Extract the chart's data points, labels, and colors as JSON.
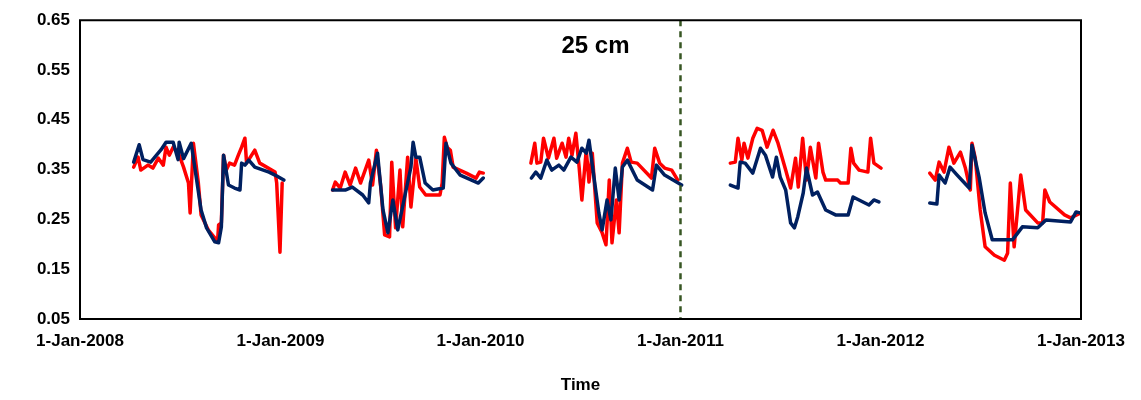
{
  "chart_data": {
    "type": "line",
    "title": "25 cm",
    "xlabel": "Time",
    "xlim": [
      "2008-01-01",
      "2013-01-01"
    ],
    "xticks": [
      {
        "value": "2008-01-01",
        "label": "1-Jan-2008"
      },
      {
        "value": "2009-01-01",
        "label": "1-Jan-2009"
      },
      {
        "value": "2010-01-01",
        "label": "1-Jan-2010"
      },
      {
        "value": "2011-01-01",
        "label": "1-Jan-2011"
      },
      {
        "value": "2012-01-01",
        "label": "1-Jan-2012"
      },
      {
        "value": "2013-01-01",
        "label": "1-Jan-2013"
      }
    ],
    "ylim": [
      0.05,
      0.65
    ],
    "yticks": [
      0.05,
      0.15,
      0.25,
      0.35,
      0.45,
      0.55,
      0.65
    ],
    "marker": "none",
    "legend": false,
    "grid": false,
    "ref_lines": [
      {
        "axis": "x",
        "value": "2011-01-01",
        "color": "#375623",
        "line_style": "dashed"
      }
    ],
    "series": [
      {
        "color": "#002060",
        "x": [
          "2008-04-08",
          "2008-04-18",
          "2008-04-25",
          "2008-05-09",
          "2008-05-28",
          "2008-06-06",
          "2008-06-19",
          "2008-06-28",
          "2008-06-30",
          "2008-07-08",
          "2008-07-22",
          "2008-08-09",
          "2008-08-19",
          "2008-09-03",
          "2008-09-10",
          "2008-09-15",
          "2008-09-19",
          "2008-09-28",
          "2008-10-09",
          "2008-10-19",
          "2008-10-22",
          "2008-10-28",
          "2008-11-04",
          "2008-11-15",
          "2008-12-11",
          "2008-12-22",
          "2009-01-07",
          "2009-02-07",
          "2009-04-06",
          "2009-04-29",
          "2009-05-12",
          "2009-05-31",
          "2009-06-11",
          "2009-06-14",
          "2009-06-27",
          "2009-07-07",
          "2009-07-16",
          "2009-07-25",
          "2009-08-03",
          "2009-08-17",
          "2009-08-27",
          "2009-08-31",
          "2009-09-05",
          "2009-09-12",
          "2009-09-22",
          "2009-10-06",
          "2009-10-25",
          "2009-10-30",
          "2009-11-08",
          "2009-11-25",
          "2009-12-28",
          "2010-01-06",
          "2010-02-07",
          "2010-04-04",
          "2010-04-12",
          "2010-04-21",
          "2010-05-02",
          "2010-05-11",
          "2010-05-24",
          "2010-06-02",
          "2010-06-15",
          "2010-06-26",
          "2010-07-05",
          "2010-07-13",
          "2010-07-18",
          "2010-07-27",
          "2010-08-05",
          "2010-08-11",
          "2010-08-20",
          "2010-08-27",
          "2010-09-04",
          "2010-09-11",
          "2010-09-17",
          "2010-09-26",
          "2010-10-14",
          "2010-11-11",
          "2010-11-18",
          "2010-12-03",
          "2011-01-03",
          "2011-02-07",
          "2011-04-02",
          "2011-04-16",
          "2011-04-20",
          "2011-04-29",
          "2011-05-13",
          "2011-05-27",
          "2011-06-05",
          "2011-06-18",
          "2011-06-25",
          "2011-07-02",
          "2011-07-12",
          "2011-07-21",
          "2011-07-28",
          "2011-08-03",
          "2011-08-13",
          "2011-08-19",
          "2011-08-30",
          "2011-09-08",
          "2011-09-23",
          "2011-10-11",
          "2011-11-03",
          "2011-11-12",
          "2011-12-11",
          "2011-12-20",
          "2011-12-29",
          "2012-02-07",
          "2012-03-31",
          "2012-04-13",
          "2012-04-17",
          "2012-04-28",
          "2012-05-07",
          "2012-05-20",
          "2012-06-11",
          "2012-06-16",
          "2012-06-29",
          "2012-07-10",
          "2012-07-23",
          "2012-08-29",
          "2012-09-16",
          "2012-10-14",
          "2012-10-29",
          "2012-12-13",
          "2012-12-23",
          "2012-12-30"
        ],
        "values": [
          0.365,
          0.4,
          0.37,
          0.365,
          0.39,
          0.405,
          0.405,
          0.37,
          0.405,
          0.372,
          0.403,
          0.269,
          0.233,
          0.205,
          0.203,
          0.235,
          0.379,
          0.319,
          0.313,
          0.309,
          0.363,
          0.359,
          0.369,
          0.355,
          0.345,
          0.339,
          0.329,
          null,
          0.309,
          0.309,
          0.315,
          0.299,
          0.283,
          0.323,
          0.383,
          0.269,
          0.223,
          0.289,
          0.229,
          0.303,
          0.355,
          0.405,
          0.375,
          0.375,
          0.323,
          0.309,
          0.313,
          0.403,
          0.363,
          0.339,
          0.323,
          0.333,
          null,
          0.333,
          0.345,
          0.333,
          0.369,
          0.349,
          0.359,
          0.349,
          0.375,
          0.365,
          0.393,
          0.383,
          0.409,
          0.335,
          0.263,
          0.229,
          0.289,
          0.249,
          0.353,
          0.289,
          0.355,
          0.369,
          0.329,
          0.309,
          0.359,
          0.339,
          0.319,
          null,
          0.319,
          0.313,
          0.365,
          0.363,
          0.343,
          0.393,
          0.379,
          0.335,
          0.375,
          0.335,
          0.309,
          0.243,
          0.233,
          0.255,
          0.303,
          0.353,
          0.299,
          0.305,
          0.269,
          0.259,
          0.259,
          0.295,
          0.279,
          0.289,
          0.285,
          null,
          0.283,
          0.281,
          0.339,
          0.323,
          0.355,
          0.339,
          0.313,
          0.399,
          0.335,
          0.263,
          0.209,
          0.209,
          0.235,
          0.233,
          0.249,
          0.245,
          0.265,
          0.263
        ]
      },
      {
        "color": "#ff0000",
        "x": [
          "2008-04-08",
          "2008-04-16",
          "2008-04-21",
          "2008-05-04",
          "2008-05-13",
          "2008-05-23",
          "2008-06-01",
          "2008-06-06",
          "2008-06-12",
          "2008-06-19",
          "2008-06-28",
          "2008-07-08",
          "2008-07-17",
          "2008-07-20",
          "2008-07-26",
          "2008-08-04",
          "2008-08-09",
          "2008-08-22",
          "2008-09-03",
          "2008-09-08",
          "2008-09-10",
          "2008-09-15",
          "2008-09-19",
          "2008-09-24",
          "2008-09-30",
          "2008-10-09",
          "2008-10-16",
          "2008-10-22",
          "2008-10-28",
          "2008-10-31",
          "2008-11-15",
          "2008-11-24",
          "2008-12-22",
          "2008-12-25",
          "2008-12-31",
          "2009-01-04",
          "2009-02-07",
          "2009-04-06",
          "2009-04-11",
          "2009-04-20",
          "2009-04-29",
          "2009-05-08",
          "2009-05-18",
          "2009-05-27",
          "2009-06-11",
          "2009-06-18",
          "2009-06-25",
          "2009-07-03",
          "2009-07-10",
          "2009-07-19",
          "2009-07-23",
          "2009-07-30",
          "2009-08-07",
          "2009-08-12",
          "2009-08-21",
          "2009-08-27",
          "2009-09-05",
          "2009-09-12",
          "2009-09-23",
          "2009-10-19",
          "2009-10-23",
          "2009-10-27",
          "2009-11-01",
          "2009-11-07",
          "2009-11-12",
          "2009-12-06",
          "2009-12-24",
          "2009-12-30",
          "2010-01-06",
          "2010-02-07",
          "2010-04-03",
          "2010-04-10",
          "2010-04-14",
          "2010-04-21",
          "2010-04-26",
          "2010-05-05",
          "2010-05-15",
          "2010-05-20",
          "2010-05-30",
          "2010-06-06",
          "2010-06-11",
          "2010-06-17",
          "2010-06-24",
          "2010-06-30",
          "2010-07-05",
          "2010-07-13",
          "2010-07-18",
          "2010-07-24",
          "2010-08-02",
          "2010-08-11",
          "2010-08-18",
          "2010-08-24",
          "2010-08-29",
          "2010-09-06",
          "2010-09-11",
          "2010-09-17",
          "2010-09-26",
          "2010-10-03",
          "2010-10-14",
          "2010-11-09",
          "2010-11-15",
          "2010-11-24",
          "2010-12-03",
          "2010-12-16",
          "2010-12-27",
          "2011-02-07",
          "2011-04-02",
          "2011-04-11",
          "2011-04-16",
          "2011-04-23",
          "2011-04-27",
          "2011-05-04",
          "2011-05-13",
          "2011-05-21",
          "2011-05-30",
          "2011-06-08",
          "2011-06-19",
          "2011-06-28",
          "2011-07-12",
          "2011-07-21",
          "2011-07-30",
          "2011-08-04",
          "2011-08-12",
          "2011-08-19",
          "2011-08-26",
          "2011-09-05",
          "2011-09-10",
          "2011-09-18",
          "2011-09-23",
          "2011-10-15",
          "2011-10-20",
          "2011-11-03",
          "2011-11-08",
          "2011-11-13",
          "2011-11-23",
          "2011-12-09",
          "2011-12-14",
          "2011-12-20",
          "2012-01-02",
          "2012-02-07",
          "2012-03-31",
          "2012-04-10",
          "2012-04-17",
          "2012-04-26",
          "2012-05-05",
          "2012-05-14",
          "2012-05-26",
          "2012-06-04",
          "2012-06-13",
          "2012-06-16",
          "2012-06-22",
          "2012-07-01",
          "2012-07-10",
          "2012-07-27",
          "2012-08-14",
          "2012-08-20",
          "2012-08-25",
          "2012-09-01",
          "2012-09-13",
          "2012-09-22",
          "2012-10-14",
          "2012-10-23",
          "2012-10-27",
          "2012-11-05",
          "2012-12-02",
          "2012-12-13",
          "2013-01-01"
        ],
        "values": [
          0.355,
          0.375,
          0.349,
          0.359,
          0.353,
          0.373,
          0.359,
          0.395,
          0.379,
          0.395,
          0.385,
          0.355,
          0.323,
          0.263,
          0.403,
          0.323,
          0.259,
          0.229,
          0.213,
          0.205,
          0.239,
          0.243,
          0.379,
          0.349,
          0.363,
          0.359,
          0.379,
          0.395,
          0.413,
          0.363,
          0.389,
          0.363,
          0.345,
          0.323,
          0.184,
          0.323,
          null,
          0.309,
          0.325,
          0.313,
          0.345,
          0.319,
          0.353,
          0.323,
          0.369,
          0.319,
          0.389,
          0.315,
          0.219,
          0.215,
          0.365,
          0.233,
          0.349,
          0.235,
          0.375,
          0.275,
          0.373,
          0.315,
          0.299,
          0.299,
          0.323,
          0.415,
          0.395,
          0.389,
          0.355,
          0.343,
          0.333,
          0.345,
          0.343,
          null,
          0.363,
          0.403,
          0.363,
          0.365,
          0.413,
          0.373,
          0.413,
          0.373,
          0.403,
          0.375,
          0.413,
          0.379,
          0.423,
          0.355,
          0.289,
          0.389,
          0.325,
          0.383,
          0.243,
          0.223,
          0.199,
          0.329,
          0.203,
          0.289,
          0.223,
          0.363,
          0.393,
          0.365,
          0.363,
          0.333,
          0.393,
          0.363,
          0.353,
          0.349,
          0.329,
          null,
          0.363,
          0.365,
          0.413,
          0.369,
          0.403,
          0.373,
          0.413,
          0.433,
          0.429,
          0.395,
          0.429,
          0.403,
          0.349,
          0.313,
          0.373,
          0.315,
          0.413,
          0.329,
          0.395,
          0.333,
          0.403,
          0.345,
          0.329,
          0.329,
          0.323,
          0.323,
          0.393,
          0.363,
          0.349,
          0.345,
          0.413,
          0.363,
          0.353,
          null,
          0.343,
          0.329,
          0.365,
          0.345,
          0.395,
          0.363,
          0.385,
          0.353,
          0.309,
          0.403,
          0.373,
          0.269,
          0.195,
          0.178,
          0.168,
          0.182,
          0.323,
          0.195,
          0.339,
          0.269,
          0.243,
          0.243,
          0.309,
          0.285,
          0.259,
          0.253,
          0.263
        ]
      }
    ]
  }
}
